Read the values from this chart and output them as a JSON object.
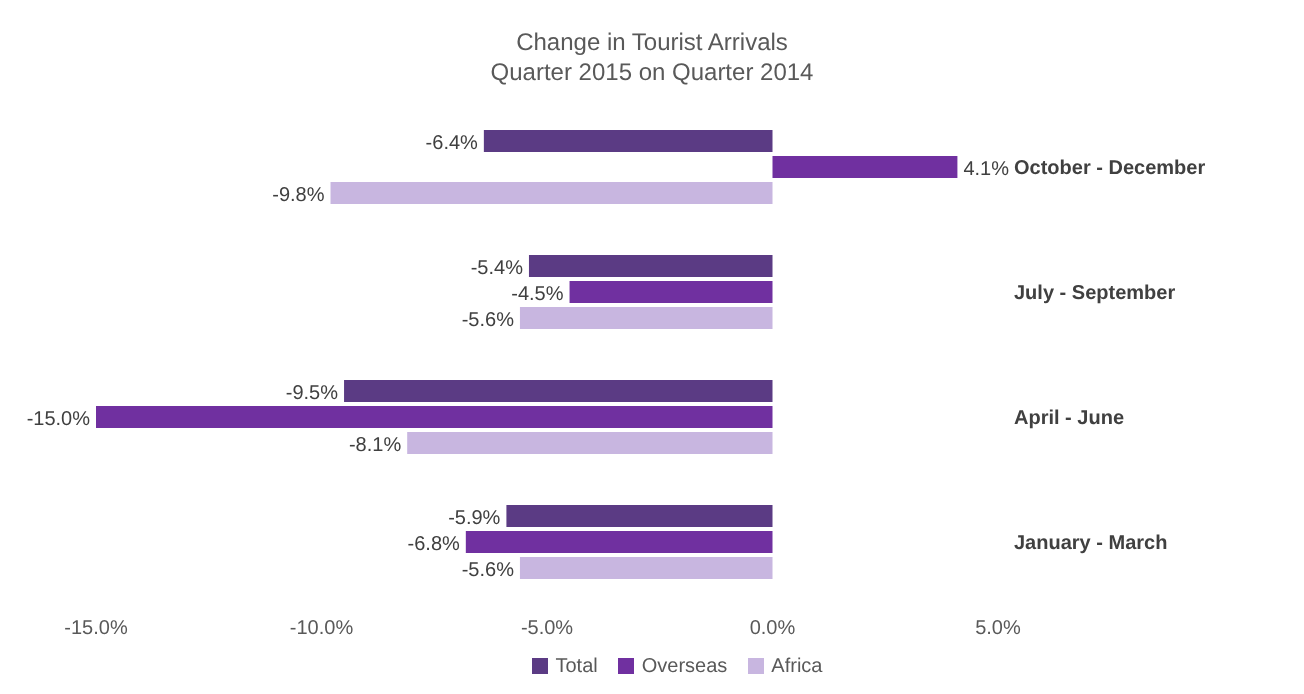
{
  "chart_data": {
    "type": "bar",
    "orientation": "horizontal",
    "title": "Change in Tourist Arrivals",
    "subtitle": "Quarter 2015 on Quarter 2014",
    "categories": [
      "October - December",
      "July - September",
      "April - June",
      "January - March"
    ],
    "series": [
      {
        "name": "Total",
        "color": "#5b3b84",
        "values": [
          -6.4,
          -5.4,
          -9.5,
          -5.9
        ],
        "value_labels": [
          "-6.4%",
          "-5.4%",
          "-9.5%",
          "-5.9%"
        ]
      },
      {
        "name": "Overseas",
        "color": "#7030a0",
        "values": [
          4.1,
          -4.5,
          -15.0,
          -6.8
        ],
        "value_labels": [
          "4.1%",
          "-4.5%",
          "-15.0%",
          "-6.8%"
        ]
      },
      {
        "name": "Africa",
        "color": "#c8b6e0",
        "values": [
          -9.8,
          -5.6,
          -8.1,
          -5.6
        ],
        "value_labels": [
          "-9.8%",
          "-5.6%",
          "-8.1%",
          "-5.6%"
        ]
      }
    ],
    "xlim": [
      -15,
      5
    ],
    "xticks": [
      {
        "value": -15,
        "label": "-15.0%"
      },
      {
        "value": -10,
        "label": "-10.0%"
      },
      {
        "value": -5,
        "label": "-5.0%"
      },
      {
        "value": 0,
        "label": "0.0%"
      },
      {
        "value": 5,
        "label": "5.0%"
      }
    ],
    "grid": false,
    "legend": "bottom"
  }
}
